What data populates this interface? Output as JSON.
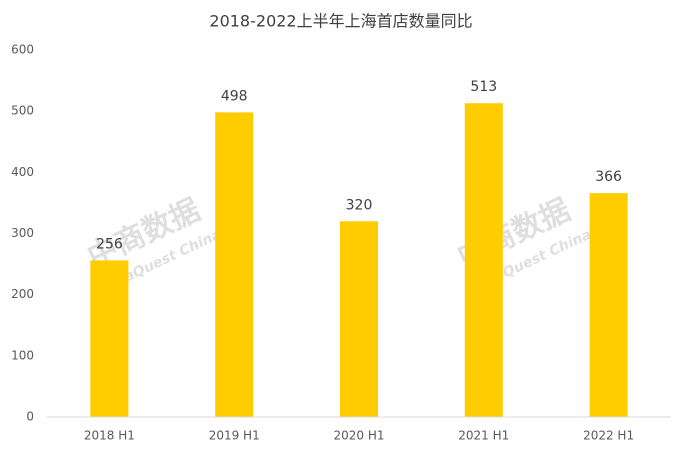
{
  "chart_data": {
    "type": "bar",
    "title": "2018-2022上半年上海首店数量同比",
    "categories": [
      "2018 H1",
      "2019 H1",
      "2020 H1",
      "2021 H1",
      "2022 H1"
    ],
    "values": [
      256,
      498,
      320,
      513,
      366
    ],
    "color": "#ffcc00",
    "ylim": [
      0,
      600
    ],
    "yticks": [
      0,
      100,
      200,
      300,
      400,
      500,
      600
    ],
    "grid": false,
    "watermark": [
      "中商数据",
      "DataQuest China"
    ]
  }
}
